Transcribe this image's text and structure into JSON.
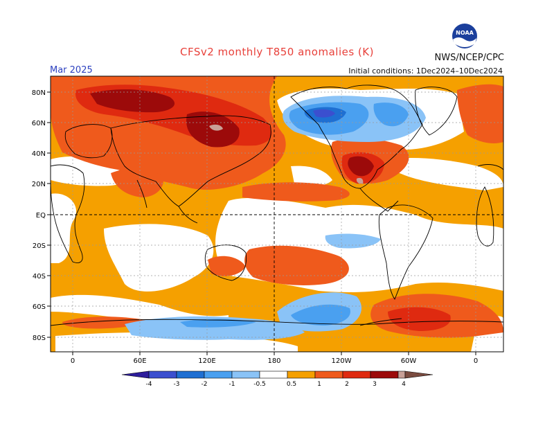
{
  "header": {
    "title": "CFSv2 monthly T850 anomalies (K)",
    "month": "Mar 2025",
    "initial_conditions": "Initial conditions: 1Dec2024–10Dec2024",
    "organization": "NWS/NCEP/CPC",
    "logo_text": "NOAA"
  },
  "axes": {
    "lat_labels": [
      "80N",
      "60N",
      "40N",
      "20N",
      "EQ",
      "20S",
      "40S",
      "60S",
      "80S"
    ],
    "lon_labels": [
      "0",
      "60E",
      "120E",
      "180",
      "120W",
      "60W",
      "0"
    ]
  },
  "legend": {
    "labels": [
      "-4",
      "-3",
      "-2",
      "-1",
      "-0.5",
      "0.5",
      "1",
      "2",
      "3",
      "4"
    ],
    "colors": [
      "#2d1d9c",
      "#3b4fcf",
      "#1f6fd2",
      "#4aa0f0",
      "#8ac3f7",
      "#ffffff",
      "#f5a000",
      "#ef5a1c",
      "#df2a10",
      "#9c0a0a",
      "#c8a097",
      "#7a4b3f"
    ]
  }
}
